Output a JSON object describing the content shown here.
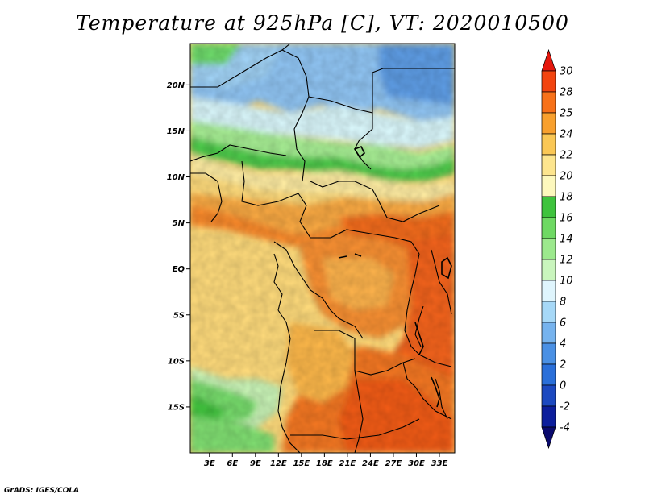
{
  "title": "Temperature at 925hPa [C], VT: 2020010500",
  "credit": "GrADS: IGES/COLA",
  "map": {
    "lat_ticks": [
      {
        "value": 20,
        "label": "20N"
      },
      {
        "value": 15,
        "label": "15N"
      },
      {
        "value": 10,
        "label": "10N"
      },
      {
        "value": 5,
        "label": "5N"
      },
      {
        "value": 0,
        "label": "EQ"
      },
      {
        "value": -5,
        "label": "5S"
      },
      {
        "value": -10,
        "label": "10S"
      },
      {
        "value": -15,
        "label": "15S"
      }
    ],
    "lon_ticks": [
      {
        "value": 3,
        "label": "3E"
      },
      {
        "value": 6,
        "label": "6E"
      },
      {
        "value": 9,
        "label": "9E"
      },
      {
        "value": 12,
        "label": "12E"
      },
      {
        "value": 15,
        "label": "15E"
      },
      {
        "value": 18,
        "label": "18E"
      },
      {
        "value": 21,
        "label": "21E"
      },
      {
        "value": 24,
        "label": "24E"
      },
      {
        "value": 27,
        "label": "27E"
      },
      {
        "value": 30,
        "label": "30E"
      },
      {
        "value": 33,
        "label": "33E"
      }
    ]
  },
  "colorbar": {
    "levels": [
      "30",
      "28",
      "25",
      "24",
      "22",
      "20",
      "18",
      "16",
      "14",
      "12",
      "10",
      "8",
      "6",
      "4",
      "2",
      "0",
      "-2",
      "-4"
    ],
    "colors": [
      "#e5170d",
      "#f2440f",
      "#f77119",
      "#f8a02e",
      "#fac755",
      "#fde58e",
      "#fdf8bd",
      "#3ec33d",
      "#6ed963",
      "#9ce98d",
      "#c9f5bd",
      "#dff5fd",
      "#a6d8f7",
      "#76b3ee",
      "#4a90e4",
      "#2a6fd9",
      "#1c49c0",
      "#0c1e9c",
      "#0a0a6e"
    ]
  }
}
